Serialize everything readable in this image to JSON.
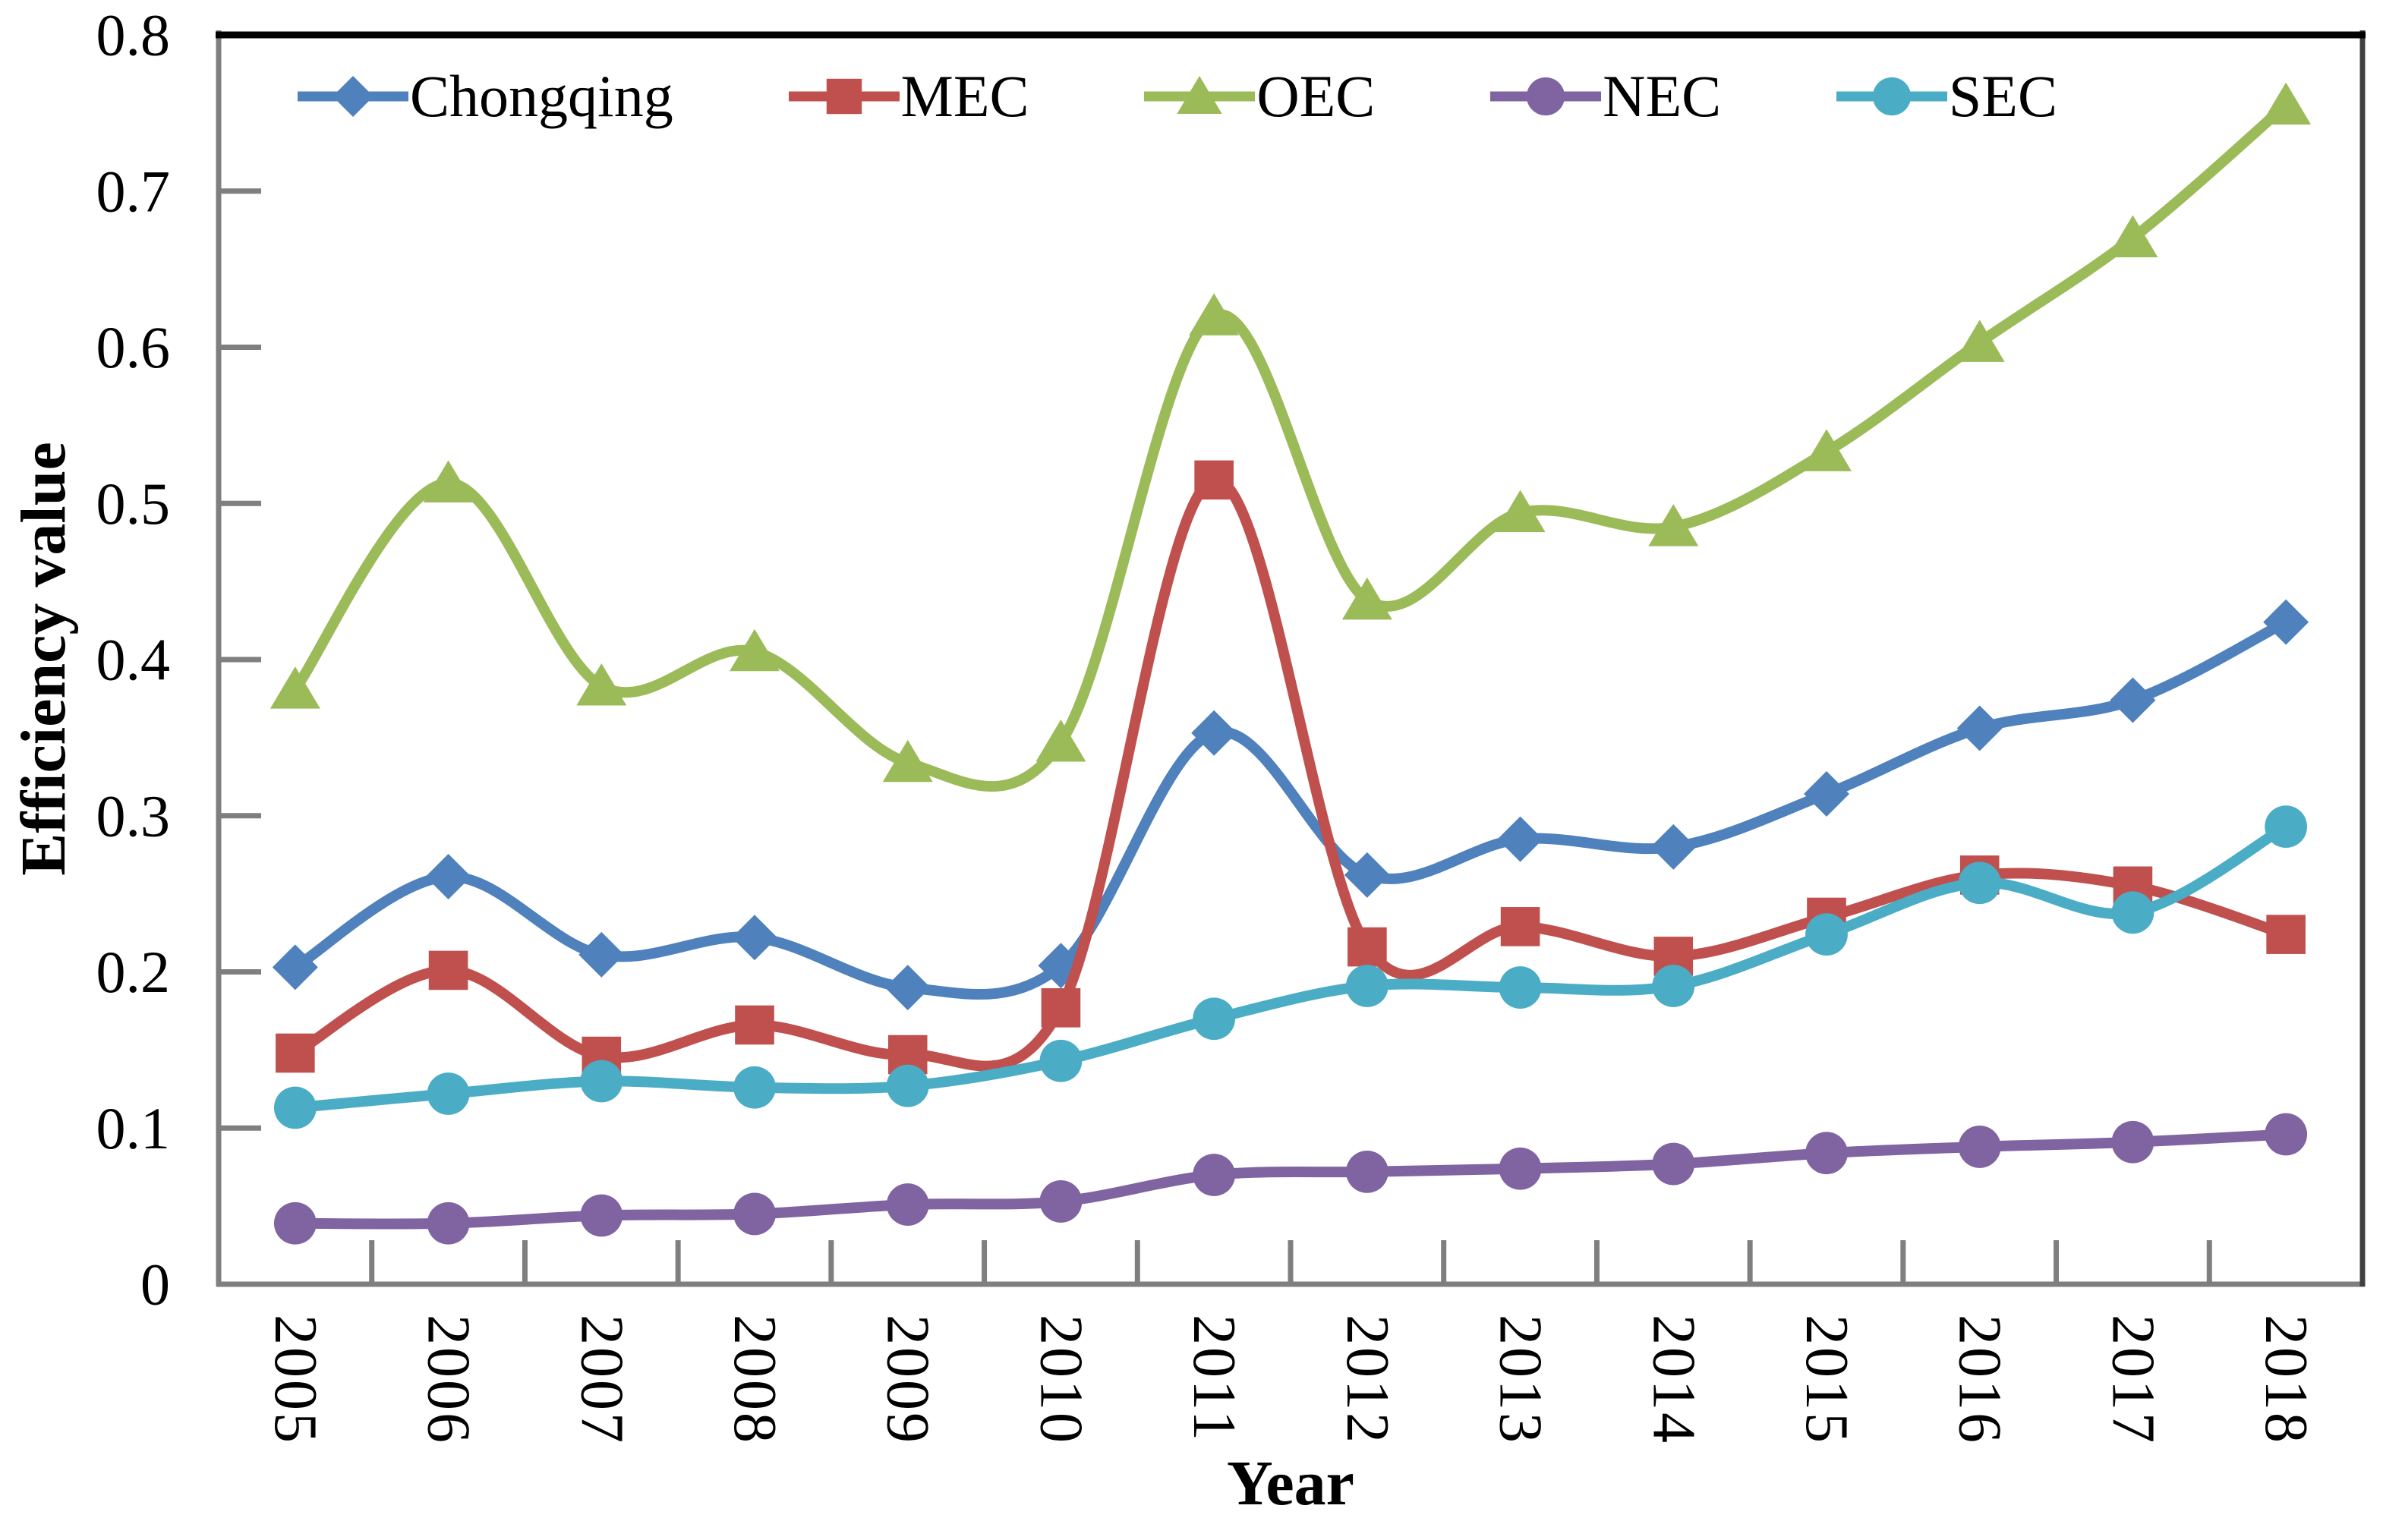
{
  "figure": {
    "background_color": "#ffffff",
    "plot_border_top_color": "#000000",
    "axis_color": "#7f7f7f",
    "text_color": "#000000"
  },
  "chart_data": {
    "type": "line",
    "title": "",
    "xlabel": "Year",
    "ylabel": "Efficiency value",
    "categories": [
      "2005",
      "2006",
      "2007",
      "2008",
      "2009",
      "2010",
      "2011",
      "2012",
      "2013",
      "2014",
      "2015",
      "2016",
      "2017",
      "2018"
    ],
    "y_ticks": [
      "0",
      "0.1",
      "0.2",
      "0.3",
      "0.4",
      "0.5",
      "0.6",
      "0.7",
      "0.8"
    ],
    "ylim": [
      0,
      0.8
    ],
    "grid": false,
    "line_smoothing": true,
    "legend_position": "top-inside",
    "series": [
      {
        "name": "Chongqing",
        "marker": "diamond",
        "color": "#4F81BD",
        "values": [
          0.203,
          0.261,
          0.211,
          0.222,
          0.19,
          0.204,
          0.353,
          0.262,
          0.285,
          0.28,
          0.314,
          0.356,
          0.374,
          0.424
        ]
      },
      {
        "name": "MEC",
        "marker": "square",
        "color": "#C0504D",
        "values": [
          0.148,
          0.201,
          0.146,
          0.166,
          0.147,
          0.177,
          0.515,
          0.216,
          0.229,
          0.21,
          0.235,
          0.262,
          0.255,
          0.224
        ]
      },
      {
        "name": "OEC",
        "marker": "triangle",
        "color": "#9BBB59",
        "values": [
          0.381,
          0.513,
          0.383,
          0.405,
          0.334,
          0.347,
          0.62,
          0.438,
          0.494,
          0.485,
          0.533,
          0.603,
          0.67,
          0.755
        ]
      },
      {
        "name": "NEC",
        "marker": "circle",
        "color": "#8064A2",
        "values": [
          0.039,
          0.039,
          0.044,
          0.045,
          0.051,
          0.053,
          0.07,
          0.072,
          0.074,
          0.077,
          0.084,
          0.088,
          0.091,
          0.096
        ]
      },
      {
        "name": "SEC",
        "marker": "circle",
        "color": "#4BACC6",
        "values": [
          0.113,
          0.122,
          0.13,
          0.126,
          0.127,
          0.143,
          0.17,
          0.191,
          0.19,
          0.191,
          0.224,
          0.257,
          0.238,
          0.293
        ]
      }
    ]
  }
}
